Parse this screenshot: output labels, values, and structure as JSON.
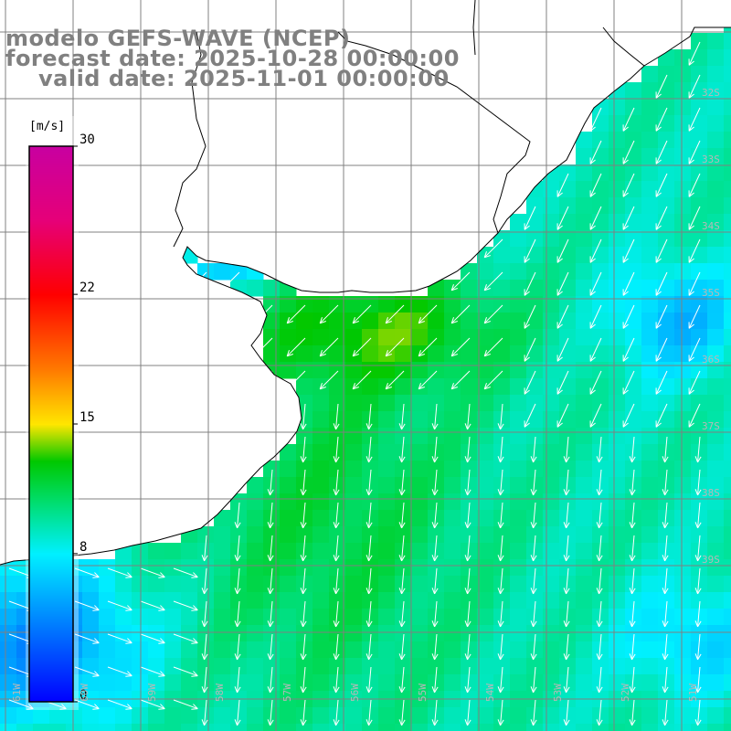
{
  "header": {
    "model": "modelo GEFS-WAVE (NCEP)",
    "forecast": "forecast date: 2025-10-28 00:00:00",
    "valid": "valid date: 2025-11-01 00:00:00"
  },
  "colorbar": {
    "unit": "[m/s]",
    "ticks": [
      {
        "value": 30,
        "label": "30"
      },
      {
        "value": 22,
        "label": "22"
      },
      {
        "value": 15,
        "label": "15"
      },
      {
        "value": 8,
        "label": "8"
      },
      {
        "value": 0,
        "label": "0"
      }
    ],
    "range": [
      0,
      30
    ]
  },
  "axes": {
    "lon_labels": [
      "61W",
      "60W",
      "59W",
      "58W",
      "57W",
      "56W",
      "55W",
      "54W",
      "53W",
      "52W",
      "51W"
    ],
    "lat_labels": [
      "32S",
      "33S",
      "34S",
      "35S",
      "36S",
      "37S",
      "38S",
      "39S"
    ]
  },
  "map": {
    "variable": "wind speed",
    "land_color": "#ffffff",
    "coast_color": "#000000",
    "grid_color": "#808080",
    "arrow_color": "#ffffff"
  }
}
